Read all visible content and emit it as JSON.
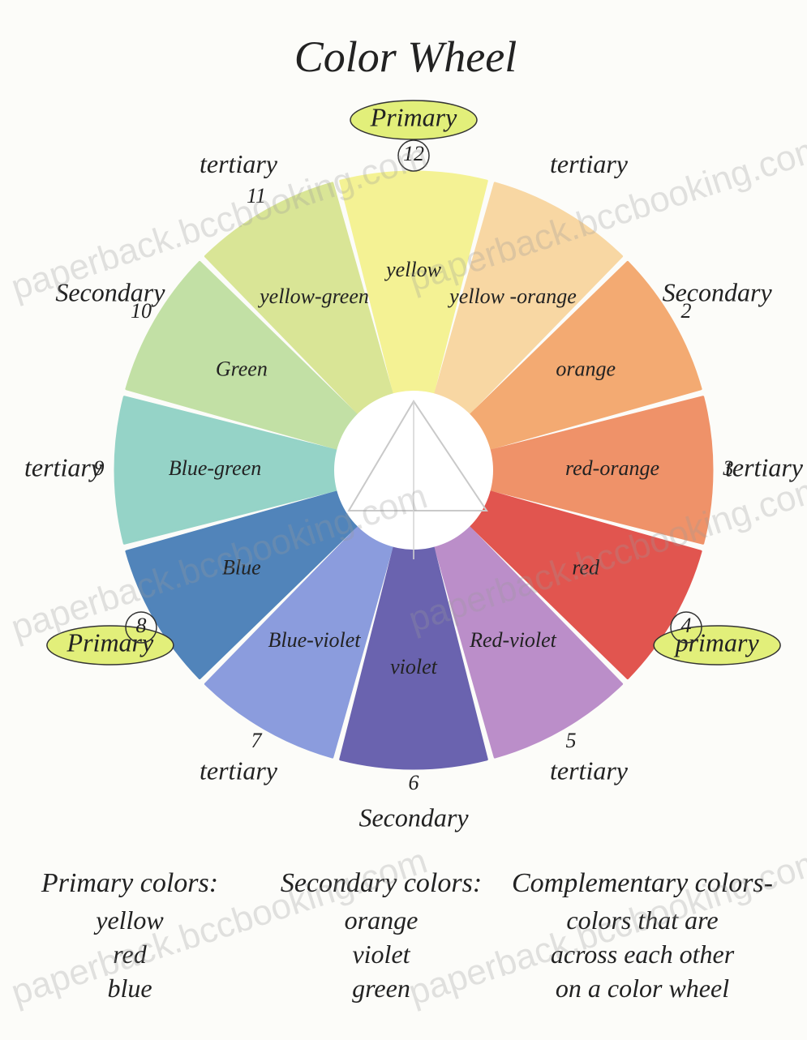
{
  "title": "Color Wheel",
  "wheel": {
    "segments": [
      {
        "label": "yellow",
        "role": "Primary",
        "number": 12,
        "color": "#f4f28a"
      },
      {
        "label": "yellow -orange",
        "role": "tertiary",
        "color": "#f8d39a"
      },
      {
        "label": "orange",
        "role": "Secondary",
        "number": 2,
        "color": "#f3a264"
      },
      {
        "label": "red-orange",
        "role": "tertiary",
        "number": 3,
        "color": "#ee875a"
      },
      {
        "label": "red",
        "role": "primary",
        "number": 4,
        "color": "#df433d"
      },
      {
        "label": "Red-violet",
        "role": "tertiary",
        "number": 5,
        "color": "#b483c4"
      },
      {
        "label": "violet",
        "role": "Secondary",
        "number": 6,
        "color": "#5b53a8"
      },
      {
        "label": "Blue-violet",
        "role": "tertiary",
        "number": 7,
        "color": "#7f92da"
      },
      {
        "label": "Blue",
        "role": "Primary",
        "number": 8,
        "color": "#3f78b4"
      },
      {
        "label": "Blue-green",
        "role": "tertiary",
        "number": 9,
        "color": "#8acfc2"
      },
      {
        "label": "Green",
        "role": "Secondary",
        "number": 10,
        "color": "#bcdd9c"
      },
      {
        "label": "yellow-green",
        "role": "tertiary",
        "number": 11,
        "color": "#d6e38c"
      }
    ]
  },
  "legend": {
    "columns": [
      {
        "heading": "Primary colors:",
        "items": [
          "yellow",
          "red",
          "blue"
        ]
      },
      {
        "heading": "Secondary colors:",
        "items": [
          "orange",
          "violet",
          "green"
        ]
      },
      {
        "heading": "Complementary colors-",
        "items": [
          "colors that are",
          "across each other",
          "on a color wheel"
        ]
      }
    ]
  },
  "watermark": "paperback.bccbooking.com"
}
